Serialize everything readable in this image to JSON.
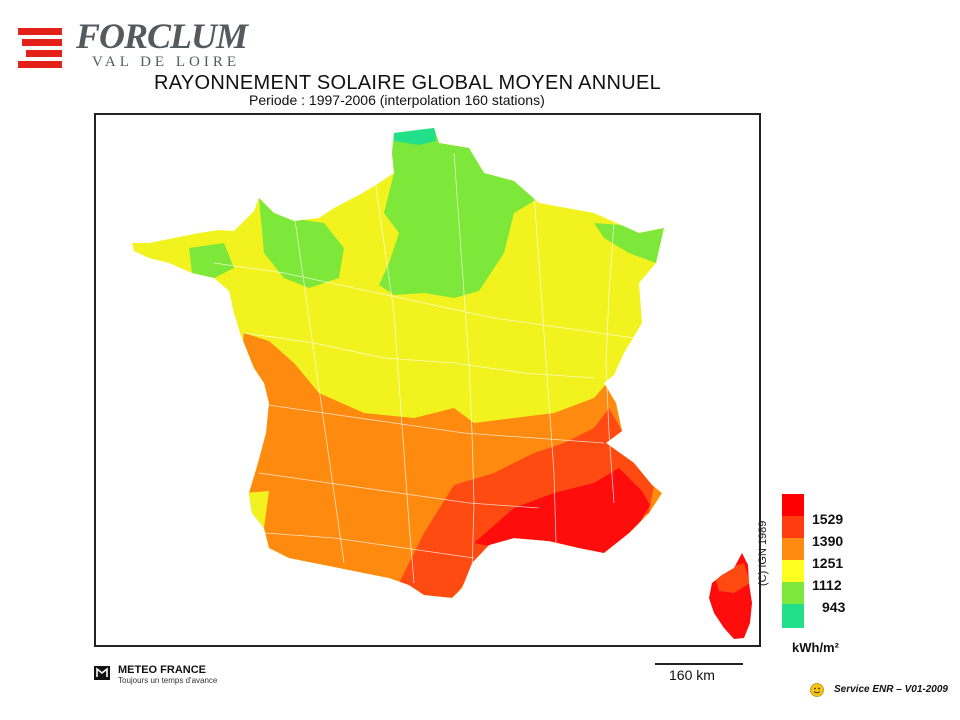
{
  "header": {
    "company_name": "FORCLUM",
    "company_subtitle": "VAL DE LOIRE",
    "title": "RAYONNEMENT SOLAIRE GLOBAL MOYEN ANNUEL",
    "subtitle": "Periode : 1997-2006    (interpolation 160 stations)"
  },
  "map": {
    "credit": "(C) IGN 1989",
    "zone_colors": {
      "943": "#22e08a",
      "1112": "#7ee83a",
      "1251": "#f2f21e",
      "1390": "#ff8a10",
      "1529": "#ff4a12",
      "max": "#ff0c0c"
    }
  },
  "legend": {
    "labels": [
      "1529",
      "1390",
      "1251",
      "1112",
      "943"
    ],
    "unit": "kWh/m²",
    "colors": [
      "#ff0000",
      "#ff3b10",
      "#ff8a10",
      "#ffff20",
      "#7ee83a",
      "#22e08a"
    ]
  },
  "footer": {
    "meteo_name": "METEO FRANCE",
    "meteo_tagline": "Toujours un temps d'avance",
    "scale_label": "160 km",
    "service": "Service ENR – V01-2009"
  }
}
